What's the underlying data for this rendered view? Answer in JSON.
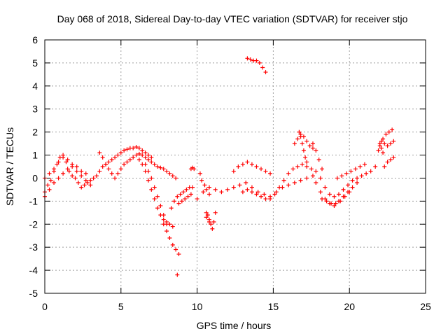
{
  "chart_data": {
    "type": "scatter",
    "title": "Day 068 of 2018, Sidereal Day-to-day VTEC variation (SDTVAR) for receiver stjo",
    "xlabel": "GPS time / hours",
    "ylabel": "SDTVAR / TECUs",
    "xlim": [
      0,
      25
    ],
    "ylim": [
      -5,
      6
    ],
    "xticks": [
      0,
      5,
      10,
      15,
      20,
      25
    ],
    "yticks": [
      -5,
      -4,
      -3,
      -2,
      -1,
      0,
      1,
      2,
      3,
      4,
      5,
      6
    ],
    "grid": true,
    "marker": "+",
    "color": "#ff0000",
    "series": [
      {
        "name": "SDTVAR",
        "x": [
          0.0,
          0.2,
          0.4,
          0.6,
          0.8,
          1.0,
          1.2,
          1.4,
          1.6,
          1.8,
          2.0,
          2.2,
          2.4,
          2.6,
          2.8,
          3.0,
          3.2,
          3.4,
          3.6,
          3.8,
          4.0,
          4.2,
          4.4,
          4.6,
          4.8,
          5.0,
          5.2,
          5.4,
          5.6,
          5.8,
          6.0,
          6.2,
          6.4,
          6.6,
          6.8,
          7.0,
          0.0,
          0.3,
          0.6,
          0.9,
          1.2,
          1.5,
          1.8,
          2.1,
          2.4,
          2.7,
          3.0,
          0.0,
          0.3,
          0.6,
          0.9,
          1.2,
          1.5,
          1.8,
          2.1,
          2.4,
          2.7,
          3.6,
          3.8,
          4.0,
          4.2,
          4.4,
          4.6,
          4.8,
          5.0,
          5.2,
          5.4,
          5.6,
          5.8,
          6.0,
          6.2,
          6.4,
          6.6,
          6.8,
          7.0,
          7.2,
          7.4,
          7.6,
          7.8,
          8.0,
          8.2,
          8.4,
          8.6,
          6.2,
          6.4,
          6.6,
          6.8,
          7.0,
          7.2,
          7.4,
          7.6,
          7.8,
          8.0,
          8.2,
          8.4,
          6.6,
          6.8,
          7.0,
          7.2,
          7.4,
          7.6,
          7.8,
          8.0,
          7.8,
          8.0,
          8.2,
          8.4,
          8.6,
          8.8,
          8.3,
          8.5,
          8.7,
          8.9,
          9.1,
          9.3,
          9.5,
          9.7,
          8.7,
          8.8,
          9.0,
          9.2,
          9.4,
          9.6,
          9.6,
          9.7,
          9.8,
          10.2,
          10.3,
          10.5,
          10.6,
          10.8,
          10.6,
          10.7,
          10.8,
          10.9,
          11.0,
          11.1,
          11.2,
          10.6,
          10.8,
          10.0,
          10.4,
          10.8,
          11.2,
          11.6,
          12.0,
          12.4,
          12.8,
          13.2,
          13.6,
          14.0,
          14.4,
          14.8,
          15.2,
          15.6,
          16.0,
          16.4,
          16.8,
          17.2,
          17.6,
          12.4,
          12.7,
          13.0,
          13.3,
          13.6,
          13.9,
          14.2,
          14.5,
          14.8,
          13.0,
          13.3,
          13.6,
          13.9,
          14.2,
          14.5,
          14.8,
          15.1,
          15.4,
          15.7,
          16.0,
          16.3,
          16.6,
          16.9,
          17.2,
          17.5,
          13.3,
          13.5,
          13.7,
          13.9,
          14.1,
          14.3,
          14.5,
          16.4,
          16.6,
          16.8,
          17.0,
          17.2,
          17.4,
          17.6,
          16.7,
          16.8,
          16.9,
          17.0,
          17.1,
          17.2,
          17.6,
          17.8,
          18.0,
          18.2,
          17.8,
          18.1,
          18.4,
          18.7,
          19.0,
          19.3,
          19.6,
          19.9,
          20.2,
          20.5,
          20.8,
          21.1,
          21.4,
          21.7,
          17.8,
          18.1,
          18.4,
          18.7,
          19.0,
          19.3,
          19.6,
          19.9,
          20.2,
          20.5,
          18.2,
          18.5,
          18.8,
          19.1,
          19.4,
          19.7,
          20.0,
          19.2,
          19.5,
          19.8,
          20.1,
          20.4,
          20.7,
          21.0,
          21.9,
          22.0,
          22.1,
          22.2,
          22.0,
          22.2,
          22.4,
          22.6,
          22.8,
          22.1,
          22.3,
          22.5,
          22.7,
          22.9,
          22.3,
          22.5,
          22.7,
          22.9
        ],
        "y": [
          -0.6,
          -0.3,
          -0.1,
          0.3,
          0.6,
          0.9,
          1.0,
          0.7,
          0.3,
          0.1,
          0.0,
          -0.2,
          -0.4,
          -0.3,
          -0.2,
          -0.1,
          0.0,
          0.1,
          0.3,
          0.5,
          0.6,
          0.7,
          0.8,
          0.9,
          1.0,
          1.1,
          1.2,
          1.25,
          1.3,
          1.3,
          1.35,
          1.3,
          1.2,
          1.1,
          1.0,
          0.9,
          -0.8,
          -0.5,
          -0.2,
          0.0,
          0.2,
          0.4,
          0.5,
          0.3,
          0.1,
          -0.1,
          -0.3,
          0.0,
          0.2,
          0.4,
          0.7,
          0.9,
          0.8,
          0.6,
          0.5,
          0.3,
          0.2,
          1.1,
          0.9,
          0.6,
          0.4,
          0.2,
          0.0,
          0.2,
          0.4,
          0.6,
          0.7,
          0.8,
          0.9,
          1.0,
          1.05,
          1.0,
          0.9,
          0.8,
          0.7,
          0.6,
          0.5,
          0.45,
          0.4,
          0.3,
          0.2,
          0.1,
          0.0,
          0.8,
          0.6,
          0.3,
          -0.1,
          -0.5,
          -0.9,
          -1.3,
          -1.6,
          -1.8,
          -1.9,
          -2.0,
          -2.1,
          0.6,
          0.3,
          0.0,
          -0.4,
          -0.8,
          -1.2,
          -1.6,
          -2.0,
          -2.0,
          -2.3,
          -2.6,
          -2.9,
          -3.1,
          -3.3,
          -1.3,
          -1.0,
          -0.8,
          -0.7,
          -0.6,
          -0.5,
          -0.4,
          -0.4,
          -4.2,
          -1.1,
          -1.0,
          -0.9,
          -0.8,
          -0.7,
          0.4,
          0.45,
          0.4,
          0.2,
          -0.1,
          -0.3,
          -0.5,
          -0.7,
          -1.5,
          -1.6,
          -1.8,
          -2.0,
          -2.2,
          -1.9,
          -1.5,
          -1.7,
          -1.9,
          -0.9,
          -0.6,
          -0.4,
          -0.5,
          -0.6,
          -0.5,
          -0.4,
          -0.3,
          -0.2,
          -0.4,
          -0.6,
          -0.7,
          -0.8,
          -0.6,
          -0.4,
          -0.3,
          -0.2,
          -0.1,
          0.0,
          0.1,
          0.3,
          0.5,
          0.6,
          0.7,
          0.6,
          0.5,
          0.4,
          0.3,
          0.2,
          -0.6,
          -0.5,
          -0.6,
          -0.7,
          -0.8,
          -0.9,
          -0.9,
          -0.7,
          -0.4,
          -0.1,
          0.2,
          0.4,
          0.5,
          0.6,
          0.5,
          0.4,
          5.2,
          5.15,
          5.1,
          5.1,
          5.0,
          4.8,
          4.6,
          1.5,
          1.7,
          1.9,
          1.8,
          1.6,
          1.4,
          1.3,
          2.0,
          1.8,
          1.5,
          1.2,
          0.9,
          0.7,
          1.5,
          1.2,
          0.8,
          0.4,
          0.3,
          0.0,
          -0.4,
          -0.7,
          -0.8,
          -0.7,
          -0.5,
          -0.3,
          -0.1,
          0.0,
          0.1,
          0.2,
          0.3,
          0.5,
          -0.2,
          -0.6,
          -0.9,
          -1.1,
          -1.2,
          -1.0,
          -0.8,
          -0.6,
          -0.4,
          -0.2,
          -0.9,
          -1.0,
          -1.1,
          -1.1,
          -1.0,
          -0.8,
          -0.6,
          0.0,
          0.1,
          0.2,
          0.3,
          0.4,
          0.5,
          0.6,
          1.2,
          1.4,
          1.3,
          1.1,
          1.5,
          1.7,
          1.9,
          2.0,
          2.1,
          1.6,
          1.5,
          1.4,
          1.5,
          1.6,
          0.5,
          0.7,
          0.8,
          0.9
        ]
      }
    ]
  }
}
